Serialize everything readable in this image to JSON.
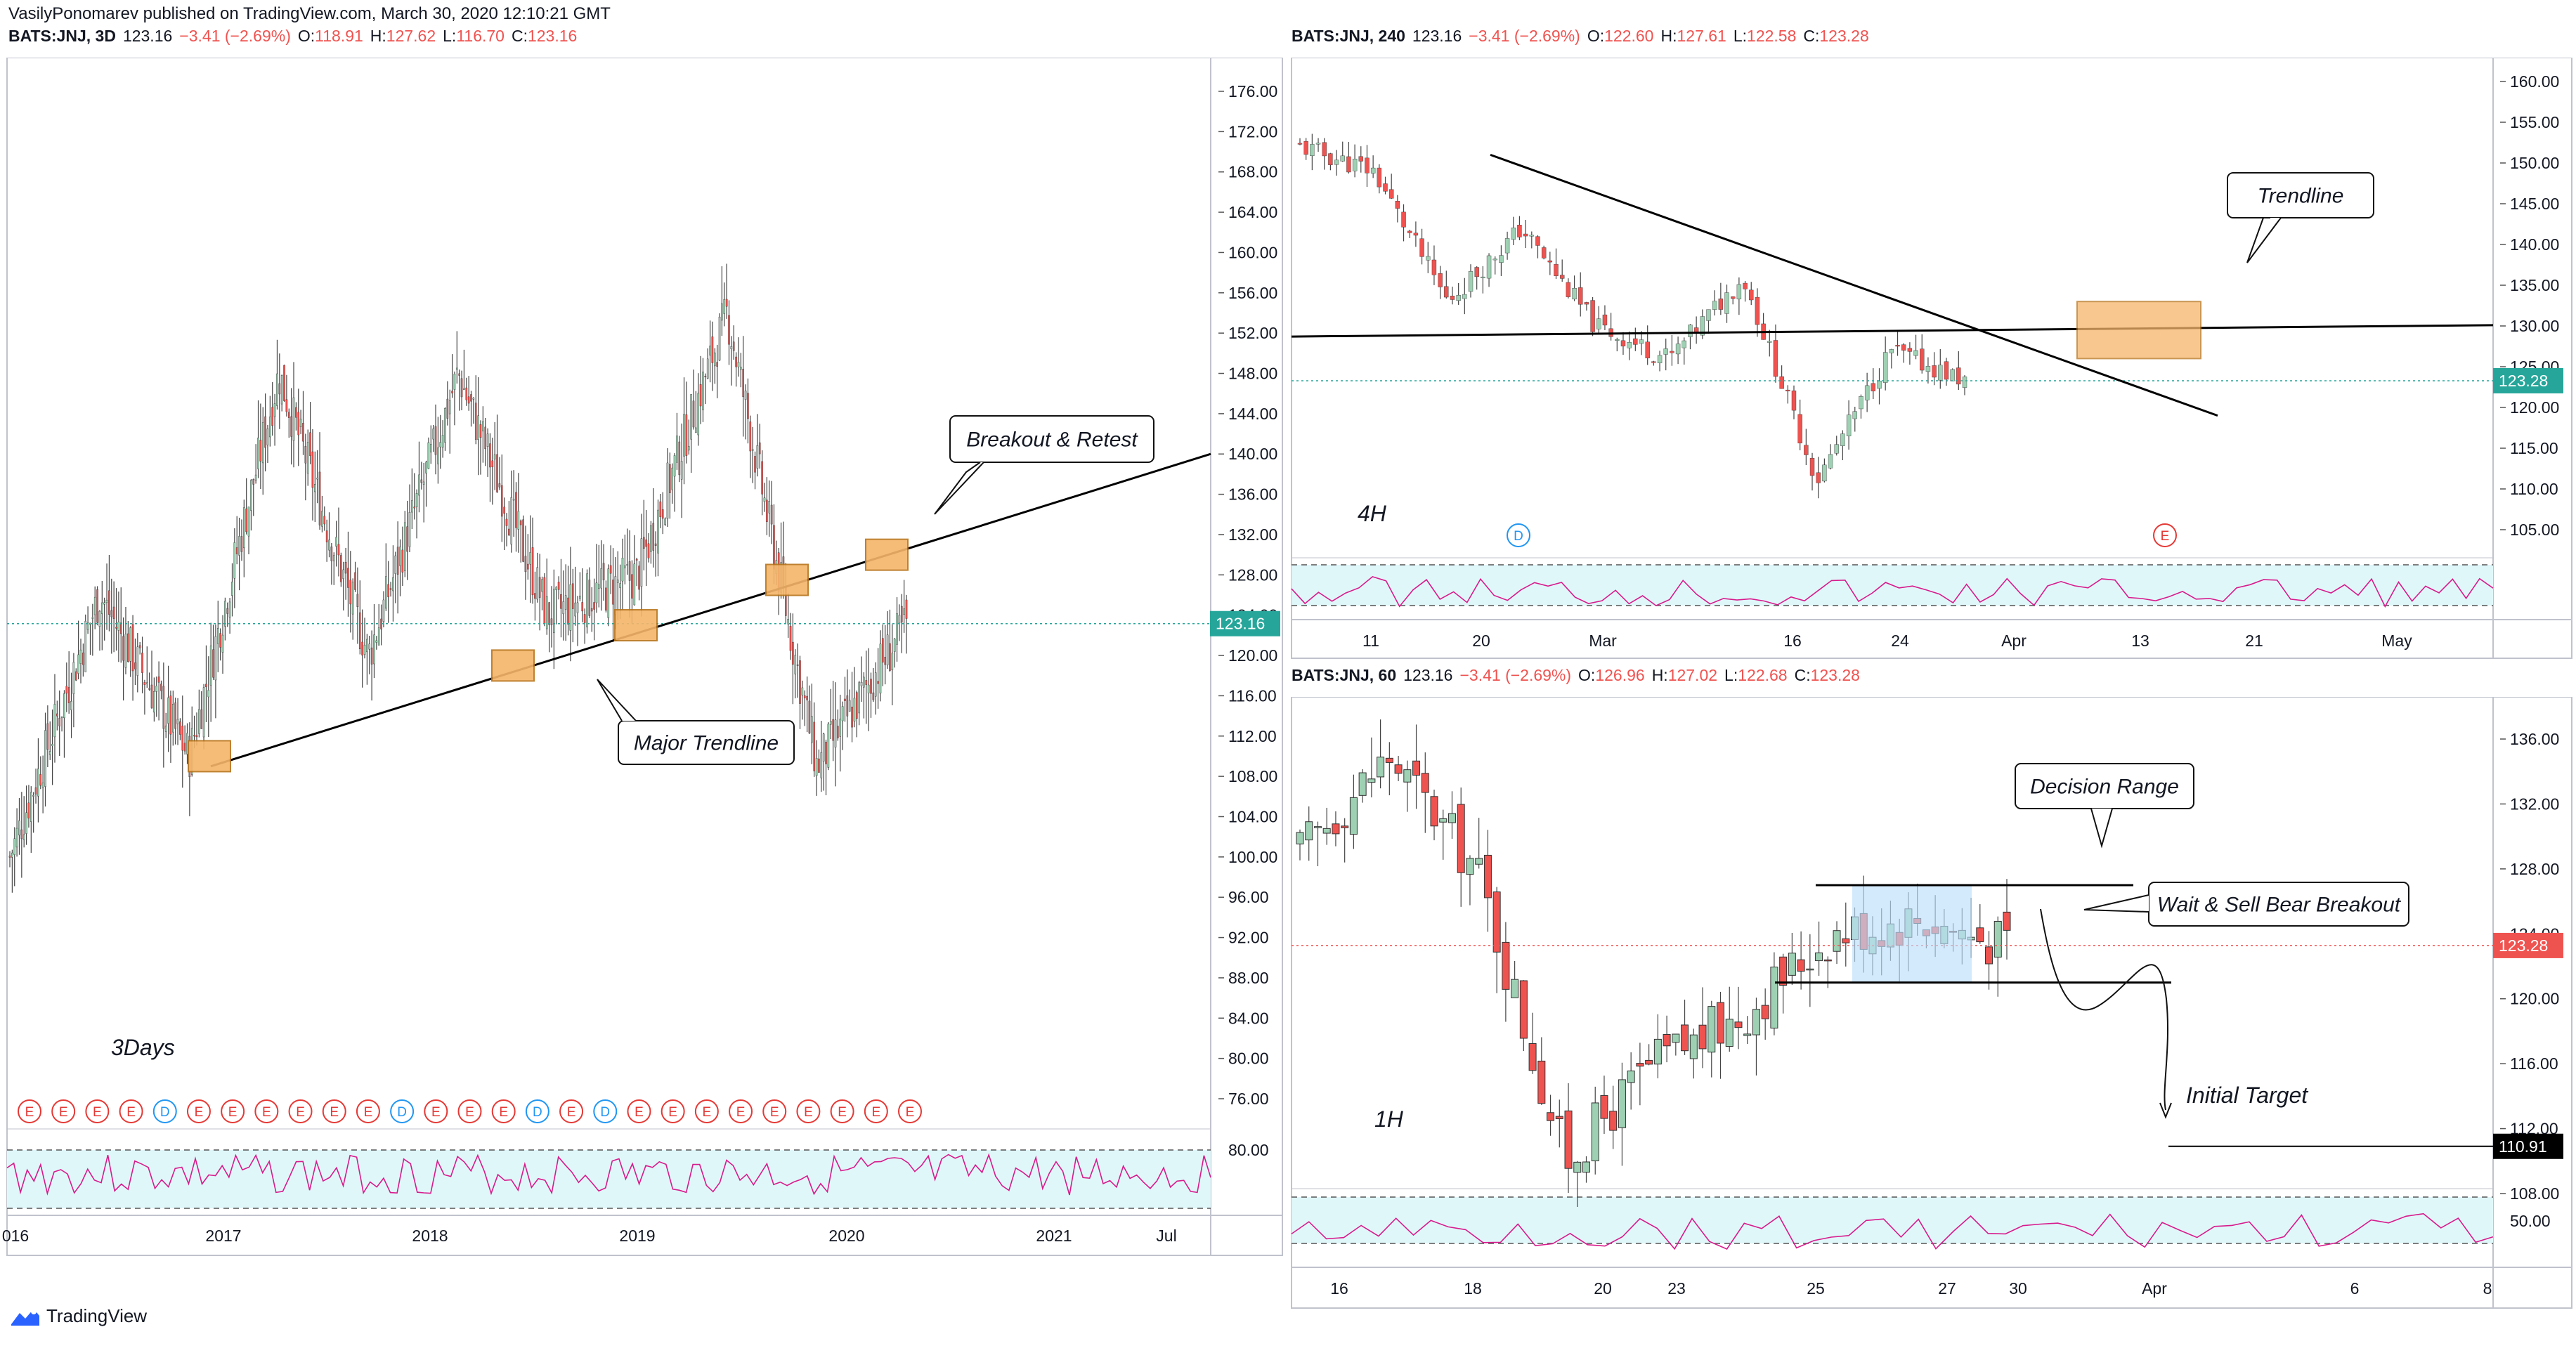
{
  "publisher_line": "VasilyPonomarev published on TradingView.com, March 30, 2020 12:10:21 GMT",
  "branding": "TradingView",
  "colors": {
    "up": "#26a69a",
    "down": "#ef5350",
    "up_fill": "#9ed1b3",
    "trend": "#000000",
    "zone": "#f5b56a",
    "rsi_band": "#e0f7fa",
    "rsi_line": "#d81b8c",
    "last_price_bg": "#26a69a",
    "last_price_red": "#ef5350"
  },
  "panels": {
    "left": {
      "symbol": "BATS:JNJ, 3D",
      "price": "123.16",
      "change": "−3.41 (−2.69%)",
      "o_label": "O:",
      "o": "118.91",
      "h_label": "H:",
      "h": "127.62",
      "l_label": "L:",
      "l": "116.70",
      "c_label": "C:",
      "c": "123.16",
      "timeframe_label": "3Days",
      "last_price": "123.16",
      "annotations": {
        "breakout": "Breakout & Retest",
        "trendline": "Major Trendline"
      },
      "y_ticks": [
        "176.00",
        "172.00",
        "168.00",
        "164.00",
        "160.00",
        "156.00",
        "152.00",
        "148.00",
        "144.00",
        "140.00",
        "136.00",
        "132.00",
        "128.00",
        "124.00",
        "120.00",
        "116.00",
        "112.00",
        "108.00",
        "104.00",
        "100.00",
        "96.00",
        "92.00",
        "88.00",
        "84.00",
        "80.00",
        "76.00"
      ],
      "x_ticks": [
        "016",
        "2017",
        "2018",
        "2019",
        "2020",
        "2021",
        "Jul"
      ],
      "rsi_tick": "80.00",
      "events": [
        "E",
        "E",
        "E",
        "E",
        "D",
        "E",
        "E",
        "E",
        "E",
        "E",
        "E",
        "D",
        "E",
        "E",
        "E",
        "D",
        "E",
        "D",
        "E",
        "E",
        "E",
        "E",
        "E",
        "E",
        "E",
        "E",
        "E"
      ]
    },
    "top_right": {
      "symbol": "BATS:JNJ, 240",
      "price": "123.16",
      "change": "−3.41 (−2.69%)",
      "o_label": "O:",
      "o": "122.60",
      "h_label": "H:",
      "h": "127.61",
      "l_label": "L:",
      "l": "122.58",
      "c_label": "C:",
      "c": "123.28",
      "timeframe_label": "4H",
      "last_price": "123.28",
      "annotations": {
        "trendline": "Trendline"
      },
      "y_ticks": [
        "160.00",
        "155.00",
        "150.00",
        "145.00",
        "140.00",
        "135.00",
        "130.00",
        "125.00",
        "120.00",
        "115.00",
        "110.00",
        "105.00"
      ],
      "x_ticks": [
        "11",
        "20",
        "Mar",
        "16",
        "24",
        "Apr",
        "13",
        "21",
        "May"
      ],
      "events": [
        "D",
        "E"
      ]
    },
    "bottom_right": {
      "symbol": "BATS:JNJ, 60",
      "price": "123.16",
      "change": "−3.41 (−2.69%)",
      "o_label": "O:",
      "o": "126.96",
      "h_label": "H:",
      "h": "127.02",
      "l_label": "L:",
      "l": "122.68",
      "c_label": "C:",
      "c": "123.28",
      "timeframe_label": "1H",
      "last_price": "123.28",
      "target_price": "110.91",
      "annotations": {
        "decision": "Decision Range",
        "wait": "Wait & Sell Bear Breakout",
        "target": "Initial Target"
      },
      "y_ticks": [
        "136.00",
        "132.00",
        "128.00",
        "124.00",
        "120.00",
        "116.00",
        "112.00",
        "108.00"
      ],
      "x_ticks": [
        "16",
        "18",
        "20",
        "23",
        "25",
        "27",
        "30",
        "Apr",
        "6",
        "8"
      ],
      "rsi_tick": "50.00"
    }
  },
  "chart_data": [
    {
      "type": "candlestick",
      "title": "BATS:JNJ, 3D",
      "x_range": [
        "2016",
        "2021 Jul"
      ],
      "ylim": [
        74,
        178
      ],
      "key_points": [
        {
          "x": "2016 start",
          "y": 100
        },
        {
          "x": "2016 mid",
          "y": 126
        },
        {
          "x": "2016 Dec",
          "y": 110
        },
        {
          "x": "2018 Jan",
          "y": 148
        },
        {
          "x": "2018 Jun",
          "y": 120
        },
        {
          "x": "2018 Dec",
          "y": 148
        },
        {
          "x": "2019 Jan",
          "y": 124
        },
        {
          "x": "2019 Sep",
          "y": 128
        },
        {
          "x": "2020 Jan",
          "y": 154
        },
        {
          "x": "2020 Mar low",
          "y": 109
        },
        {
          "x": "2020 Mar last",
          "y": 123.16
        }
      ],
      "trendline": [
        {
          "x": "2016 Dec",
          "y": 109
        },
        {
          "x": "2021 Jul",
          "y": 140
        }
      ],
      "retest_zones_y": [
        110,
        119,
        123,
        127.5,
        130
      ]
    },
    {
      "type": "candlestick",
      "title": "BATS:JNJ, 240",
      "x_range": [
        "Feb 06",
        "May 08"
      ],
      "ylim": [
        100,
        162
      ],
      "key_points": [
        {
          "x": "Feb 7",
          "y": 152
        },
        {
          "x": "Feb 20",
          "y": 149
        },
        {
          "x": "Mar 2",
          "y": 133
        },
        {
          "x": "Mar 5",
          "y": 142
        },
        {
          "x": "Mar 10",
          "y": 130
        },
        {
          "x": "Mar 16",
          "y": 126
        },
        {
          "x": "Mar 19",
          "y": 136
        },
        {
          "x": "Mar 23",
          "y": 111
        },
        {
          "x": "Mar 27",
          "y": 127
        },
        {
          "x": "Mar 30",
          "y": 123.28
        }
      ],
      "trendline_down": [
        {
          "x": "Feb 20",
          "y": 151
        },
        {
          "x": "Apr 16",
          "y": 119
        }
      ],
      "horizontal_line_y": 128.5,
      "zone": {
        "y_low": 126,
        "y_high": 133
      }
    },
    {
      "type": "candlestick",
      "title": "BATS:JNJ, 60",
      "x_range": [
        "Mar 15",
        "Apr 8"
      ],
      "ylim": [
        104,
        138
      ],
      "key_points": [
        {
          "x": "Mar 16",
          "y": 129
        },
        {
          "x": "Mar 18",
          "y": 135
        },
        {
          "x": "Mar 20",
          "y": 128
        },
        {
          "x": "Mar 23",
          "y": 110
        },
        {
          "x": "Mar 24",
          "y": 116
        },
        {
          "x": "Mar 25",
          "y": 119
        },
        {
          "x": "Mar 26",
          "y": 124
        },
        {
          "x": "Mar 27",
          "y": 125
        },
        {
          "x": "Mar 30",
          "y": 123.28
        }
      ],
      "decision_range": {
        "y_low": 121,
        "y_high": 127
      },
      "target_y": 110.91
    }
  ]
}
